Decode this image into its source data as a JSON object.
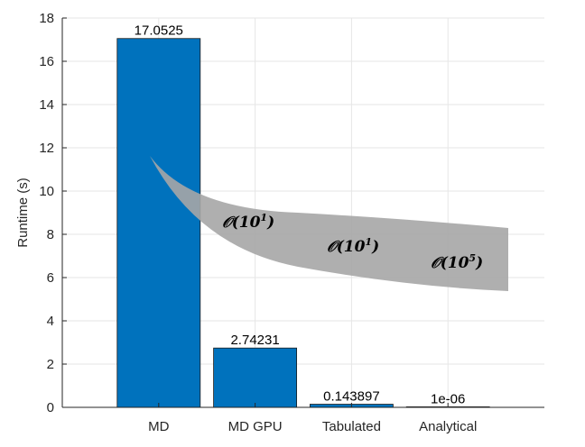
{
  "chart_data": {
    "type": "bar",
    "categories": [
      "MD",
      "MD GPU",
      "Tabulated",
      "Analytical"
    ],
    "values": [
      17.0525,
      2.74231,
      0.143897,
      1e-06
    ],
    "data_labels": [
      "17.0525",
      "2.74231",
      "0.143897",
      "1e-06"
    ],
    "ylabel": "Runtime (s)",
    "xlabel": "",
    "ylim": [
      0,
      18
    ],
    "yticks": [
      0,
      2,
      4,
      6,
      8,
      10,
      12,
      14,
      16,
      18
    ],
    "grid": true,
    "bar_color": "#0072BD",
    "annotations": [
      {
        "base": "𝒪(10",
        "exp": "1",
        "close": ")"
      },
      {
        "base": "𝒪(10",
        "exp": "1",
        "close": ")"
      },
      {
        "base": "𝒪(10",
        "exp": "5",
        "close": ")"
      }
    ],
    "annotation_band_color": "#a6a6a6"
  }
}
